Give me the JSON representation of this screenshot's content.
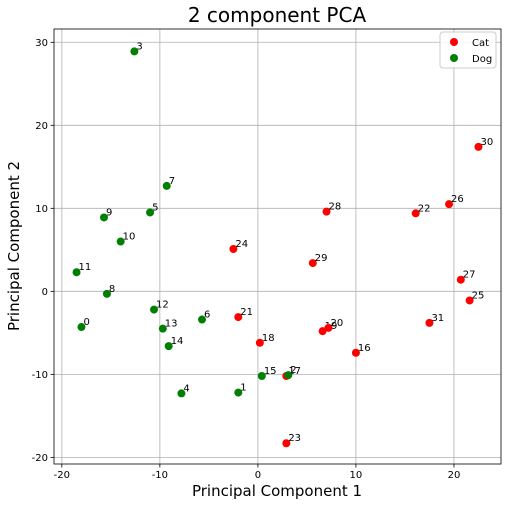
{
  "chart_data": {
    "type": "scatter",
    "title": "2 component PCA",
    "xlabel": "Principal Component 1",
    "ylabel": "Principal Component 2",
    "xlim": [
      -20.8,
      24.8
    ],
    "ylim": [
      -20.8,
      31.6
    ],
    "xticks": [
      -20,
      -10,
      0,
      10,
      20
    ],
    "yticks": [
      -20,
      -10,
      0,
      10,
      20,
      30
    ],
    "grid": true,
    "legend_position": "top-right",
    "series": [
      {
        "name": "Cat",
        "color": "#ff0000",
        "points": [
          {
            "label": "16",
            "x": 10.0,
            "y": -7.4
          },
          {
            "label": "17",
            "x": 2.9,
            "y": -10.2
          },
          {
            "label": "18",
            "x": 0.2,
            "y": -6.2
          },
          {
            "label": "19",
            "x": 6.6,
            "y": -4.8
          },
          {
            "label": "20",
            "x": 7.2,
            "y": -4.4
          },
          {
            "label": "21",
            "x": -2.0,
            "y": -3.1
          },
          {
            "label": "22",
            "x": 16.1,
            "y": 9.4
          },
          {
            "label": "23",
            "x": 2.9,
            "y": -18.3
          },
          {
            "label": "24",
            "x": -2.5,
            "y": 5.1
          },
          {
            "label": "25",
            "x": 21.6,
            "y": -1.1
          },
          {
            "label": "26",
            "x": 19.5,
            "y": 10.5
          },
          {
            "label": "27",
            "x": 20.7,
            "y": 1.4
          },
          {
            "label": "28",
            "x": 7.0,
            "y": 9.6
          },
          {
            "label": "29",
            "x": 5.6,
            "y": 3.4
          },
          {
            "label": "30",
            "x": 22.5,
            "y": 17.4
          },
          {
            "label": "31",
            "x": 17.5,
            "y": -3.8
          }
        ]
      },
      {
        "name": "Dog",
        "color": "#008000",
        "points": [
          {
            "label": "0",
            "x": -18.0,
            "y": -4.3
          },
          {
            "label": "1",
            "x": -2.0,
            "y": -12.2
          },
          {
            "label": "2",
            "x": 3.1,
            "y": -10.1
          },
          {
            "label": "3",
            "x": -12.6,
            "y": 28.9
          },
          {
            "label": "4",
            "x": -7.8,
            "y": -12.3
          },
          {
            "label": "5",
            "x": -11.0,
            "y": 9.5
          },
          {
            "label": "6",
            "x": -5.7,
            "y": -3.4
          },
          {
            "label": "7",
            "x": -9.3,
            "y": 12.7
          },
          {
            "label": "8",
            "x": -15.4,
            "y": -0.3
          },
          {
            "label": "9",
            "x": -15.7,
            "y": 8.9
          },
          {
            "label": "10",
            "x": -14.0,
            "y": 6.0
          },
          {
            "label": "11",
            "x": -18.5,
            "y": 2.3
          },
          {
            "label": "12",
            "x": -10.6,
            "y": -2.2
          },
          {
            "label": "13",
            "x": -9.7,
            "y": -4.5
          },
          {
            "label": "14",
            "x": -9.1,
            "y": -6.6
          },
          {
            "label": "15",
            "x": 0.4,
            "y": -10.2
          }
        ]
      }
    ]
  }
}
